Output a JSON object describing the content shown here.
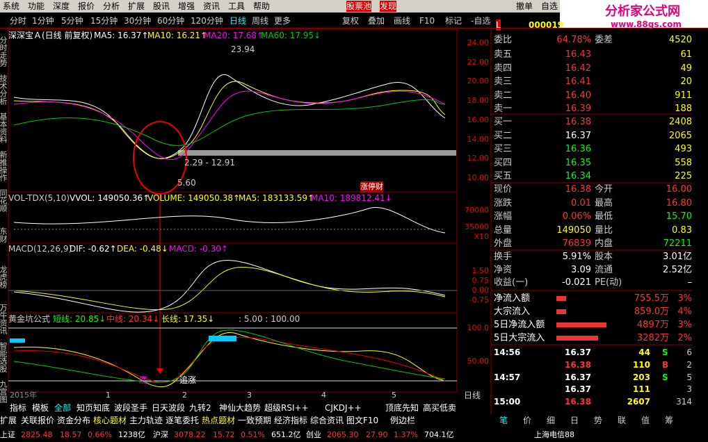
{
  "menu": [
    "系统",
    "功能",
    "深度",
    "报价",
    "分析",
    "扩展",
    "股讯",
    "增强",
    "资讯",
    "工具",
    "帮助"
  ],
  "menu_highlight": [
    "股票池",
    "发现"
  ],
  "top_buttons": [
    "撤单",
    "自选"
  ],
  "logo": {
    "title": "分析家公式网",
    "url": "www.88gs.com"
  },
  "periods": [
    "分时",
    "1分钟",
    "5分钟",
    "15分钟",
    "30分钟",
    "60分钟",
    "120分钟",
    "日线",
    "周线",
    "更多"
  ],
  "tools": [
    "复权",
    "叠加",
    "画线",
    "F10",
    "标记",
    "-自选"
  ],
  "side_tabs": [
    "分时走势",
    "技术分析",
    "基本资料",
    "新推操作",
    "同花顺",
    "东财",
    "龙虎榜",
    "万牛资讯",
    "智能选股",
    "九宫图"
  ],
  "price_pane": {
    "title": "深深宝Ａ(日线 前复权)",
    "indicators": [
      "MA5: 16.37↑",
      "MA10: 16.21↑",
      "MA20: 17.68↑",
      "MA60: 17.95↓"
    ],
    "axis": [
      "24.00",
      "22.00",
      "20.00",
      "18.00",
      "16.00",
      "14.00",
      "12.00",
      "10.00"
    ],
    "annotations": {
      "high": "23.94",
      "range": "2.29 - 12.91",
      "low": "5.60",
      "tag": "涨停财"
    }
  },
  "volume_pane": {
    "title": "VOL-TDX(5,10)",
    "indicators": [
      "VVOL: 149050.36↑",
      "VOLUME: 149050.38↑",
      "MA5: 183133.59↑",
      "MA10: 189812.41↓"
    ],
    "axis": [
      "70000",
      "35000",
      "X10"
    ]
  },
  "macd_pane": {
    "title": "MACD(12,26,9)",
    "indicators": [
      "DIF: -0.62↑",
      "DEA: -0.48↓",
      "MACD: -0.30↑"
    ],
    "axis": [
      "1.50",
      "0.75",
      "0.00",
      "-0.75"
    ]
  },
  "gold_pane": {
    "title": "黄金坑公式",
    "indicators": [
      "短线: 20.85↓",
      "中线: 20.34↓",
      "长线: 17.35↓",
      ": 5.00 : 100.00"
    ],
    "axis": [
      "100.0",
      "50.00"
    ],
    "annotations": {
      "bottom": "底",
      "chase": "追涨"
    }
  },
  "x_axis": {
    "year": "2015年",
    "months": [
      "1",
      "2",
      "3",
      "4",
      "5"
    ],
    "period": "日线"
  },
  "indicator_tabs": [
    "指标",
    "模板",
    "全部",
    "知页知底",
    "波段圣手",
    "日天波段",
    "九转2",
    "神仙大趋势",
    "超级RSI++",
    "CJKDJ++",
    "顶底先知",
    "高买低卖"
  ],
  "info_tabs": [
    "扩展",
    "关联报价",
    "资金分布",
    "核心题材",
    "主力轨迹",
    "逐笔委托",
    "热点题材",
    "一致预期",
    "经济指标",
    "综合资讯",
    "图文F10",
    "例边栏"
  ],
  "status_bar": {
    "indices": [
      [
        "上证",
        "2825.48",
        "18.57",
        "0.66%",
        "1238亿"
      ],
      [
        "沪深",
        "3078.22",
        "15.72",
        "0.51%",
        "651.2亿"
      ],
      [
        "创业",
        "2065.30",
        "27.90",
        "1.37%",
        "704.1亿"
      ]
    ],
    "network": "上海电信88"
  },
  "quote_panel": {
    "badge": "L",
    "code": "000019",
    "ratio": [
      "委比",
      "64.78%",
      "委差",
      "4520"
    ],
    "asks": [
      [
        "卖五",
        "16.43",
        "61"
      ],
      [
        "卖四",
        "16.42",
        "49"
      ],
      [
        "卖三",
        "16.41",
        "20"
      ],
      [
        "卖二",
        "16.40",
        "911"
      ],
      [
        "卖一",
        "16.39",
        "188"
      ]
    ],
    "bids": [
      [
        "买一",
        "16.38",
        "2408"
      ],
      [
        "买二",
        "16.37",
        "2065"
      ],
      [
        "买三",
        "16.36",
        "493"
      ],
      [
        "买四",
        "16.35",
        "558"
      ],
      [
        "买五",
        "16.34",
        "225"
      ]
    ],
    "stats": [
      [
        "现价",
        "16.38",
        "今开",
        "16.00"
      ],
      [
        "涨跌",
        "0.01",
        "最高",
        "16.80"
      ],
      [
        "涨幅",
        "0.06%",
        "最低",
        "15.70"
      ],
      [
        "总量",
        "149050",
        "量比",
        "0.83"
      ],
      [
        "外盘",
        "76839",
        "内盘",
        "72211"
      ]
    ],
    "stats2": [
      [
        "换手",
        "5.91%",
        "股本",
        "3.01亿"
      ],
      [
        "净资",
        "3.09",
        "流通",
        "2.52亿"
      ],
      [
        "收益(一)",
        "-0.021",
        "PE(动)",
        "–"
      ]
    ],
    "flows": [
      [
        "净流入额",
        "755.5万",
        "3%"
      ],
      [
        "大宗流入",
        "859.0万",
        "4%"
      ],
      [
        "5日净流入额",
        "4897万",
        "3%"
      ],
      [
        "5日大宗流入",
        "3282万",
        "2%"
      ]
    ],
    "ticks": [
      {
        "time": "14:56",
        "price": "16.37",
        "volume": "44",
        "side": "S",
        "count": "6"
      },
      {
        "price": "16.38",
        "volume": "110",
        "side": "B",
        "count": "2"
      },
      {
        "time": "14:57",
        "price": "16.37",
        "volume": "203",
        "side": "S",
        "count": "5"
      },
      {
        "price": "16.37",
        "volume": "111",
        "count": "3"
      },
      {
        "time": "15:00",
        "price": "16.38",
        "volume": "2607",
        "count": "314"
      }
    ],
    "tabs": [
      "笔",
      "价",
      "细",
      "日",
      "势",
      "联",
      "值",
      "筹"
    ]
  }
}
